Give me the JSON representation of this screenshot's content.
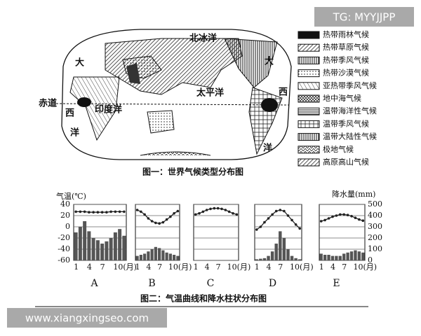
{
  "watermark_top": "TG: MYYJJPP",
  "watermark_bottom": "www.xiangxingseo.com",
  "map": {
    "labels": [
      "北冰洋",
      "大",
      "西",
      "洋",
      "大",
      "西",
      "洋",
      "太平洋",
      "印度洋",
      "赤道"
    ],
    "caption": "图一：世界气候类型分布图"
  },
  "legend": [
    "热带雨林气候",
    "热带草原气候",
    "热带季风气候",
    "热带沙漠气候",
    "亚热带季风气候",
    "地中海气候",
    "温带海洋性气候",
    "温带季风气候",
    "温带大陆性气候",
    "极地气候",
    "高原高山气候"
  ],
  "charts_caption": "图二：气温曲线和降水柱状分布图",
  "chart_data": [
    {
      "type": "climate",
      "label": "A",
      "ylabel": "气温(℃)",
      "ylim": [
        -60,
        40
      ],
      "yticks": [
        40,
        20,
        0,
        -20,
        -40,
        -60
      ],
      "y2lim": [
        0,
        500
      ],
      "categories": [
        "1",
        null,
        null,
        "4",
        null,
        null,
        "7",
        null,
        null,
        "10(月)",
        null,
        null
      ],
      "series": [
        {
          "color": "#222",
          "axis": "y",
          "values": [
            27,
            27,
            27,
            26,
            26,
            26,
            26,
            26,
            27,
            27,
            27,
            27
          ]
        },
        {
          "color": "#555",
          "axis": "y2",
          "values": [
            250,
            300,
            350,
            260,
            200,
            180,
            150,
            170,
            200,
            250,
            280,
            220
          ]
        }
      ]
    },
    {
      "type": "climate",
      "label": "B",
      "ylim": [
        -60,
        40
      ],
      "y2lim": [
        0,
        500
      ],
      "categories": [
        "1",
        null,
        null,
        "4",
        null,
        null,
        "7",
        null,
        null,
        "10(月)",
        null,
        null
      ],
      "series": [
        {
          "color": "#222",
          "axis": "y",
          "values": [
            30,
            27,
            22,
            15,
            10,
            7,
            6,
            8,
            13,
            18,
            24,
            28
          ]
        },
        {
          "color": "#555",
          "axis": "y2",
          "values": [
            40,
            50,
            60,
            80,
            100,
            120,
            110,
            90,
            70,
            60,
            50,
            40
          ]
        }
      ]
    },
    {
      "type": "climate",
      "label": "C",
      "ylim": [
        -60,
        40
      ],
      "y2lim": [
        0,
        500
      ],
      "categories": [
        "1",
        null,
        null,
        "4",
        null,
        null,
        "7",
        null,
        null,
        "10(月)",
        null,
        null
      ],
      "series": [
        {
          "color": "#222",
          "axis": "y",
          "values": [
            22,
            24,
            27,
            30,
            32,
            33,
            33,
            32,
            30,
            27,
            24,
            22
          ]
        },
        {
          "color": "#555",
          "axis": "y2",
          "values": [
            2,
            1,
            1,
            0,
            0,
            0,
            0,
            0,
            0,
            1,
            1,
            2
          ]
        }
      ]
    },
    {
      "type": "climate",
      "label": "D",
      "ylim": [
        -60,
        40
      ],
      "y2lim": [
        0,
        500
      ],
      "categories": [
        "1",
        null,
        null,
        "4",
        null,
        null,
        "7",
        null,
        null,
        "10(月)",
        null,
        null
      ],
      "series": [
        {
          "color": "#222",
          "axis": "y",
          "values": [
            -5,
            0,
            8,
            15,
            22,
            28,
            30,
            28,
            20,
            12,
            4,
            -3
          ]
        },
        {
          "color": "#555",
          "axis": "y2",
          "values": [
            10,
            15,
            20,
            40,
            80,
            150,
            260,
            200,
            100,
            40,
            20,
            10
          ]
        }
      ]
    },
    {
      "type": "climate",
      "label": "E",
      "y2label": "降水量(mm)",
      "ylim": [
        -60,
        40
      ],
      "y2lim": [
        0,
        500
      ],
      "y2ticks": [
        500,
        400,
        300,
        200,
        100,
        0
      ],
      "categories": [
        "1",
        null,
        null,
        "4",
        null,
        null,
        "7",
        null,
        null,
        "10(月)",
        null,
        null
      ],
      "series": [
        {
          "color": "#222",
          "axis": "y",
          "values": [
            10,
            12,
            15,
            18,
            20,
            22,
            22,
            21,
            19,
            16,
            13,
            11
          ]
        },
        {
          "color": "#555",
          "axis": "y2",
          "values": [
            60,
            50,
            50,
            40,
            40,
            40,
            60,
            70,
            80,
            90,
            80,
            70
          ]
        }
      ]
    }
  ]
}
